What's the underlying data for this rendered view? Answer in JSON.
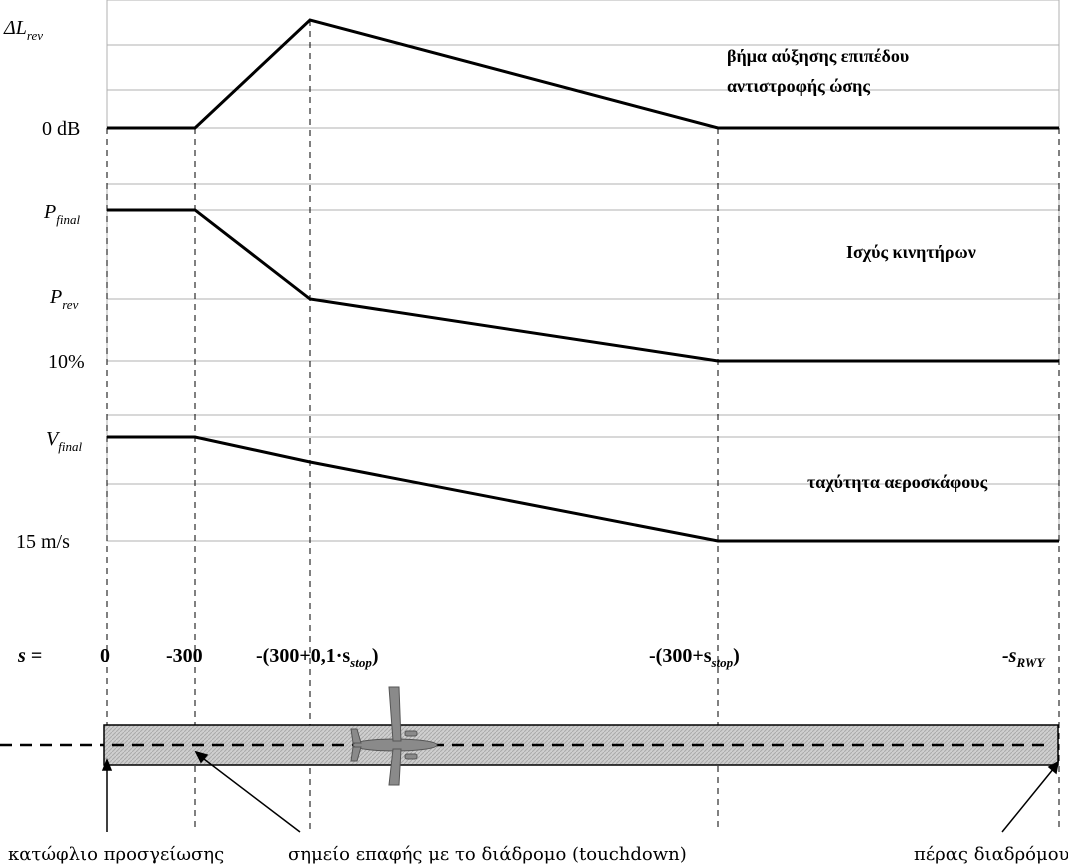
{
  "panels": {
    "reverse_step": {
      "title_line1": "βήμα αύξησης επιπέδου",
      "title_line2": "αντιστροφής ώσης",
      "y_top_main": "ΔL",
      "y_top_sub": "rev",
      "y_bottom": "0 dB"
    },
    "engine_power": {
      "title": "Ισχύς κινητήρων",
      "y_top_main": "P",
      "y_top_sub": "final",
      "y_mid_main": "P",
      "y_mid_sub": "rev",
      "y_bottom": "10%"
    },
    "aircraft_speed": {
      "title": "ταχύτητα αεροσκάφους",
      "y_top_main": "V",
      "y_top_sub": "final",
      "y_bottom": "15 m/s"
    }
  },
  "s_axis": {
    "label": "s =",
    "ticks": [
      {
        "main": "0",
        "sub": "",
        "tail": ""
      },
      {
        "main": "-300",
        "sub": "",
        "tail": ""
      },
      {
        "main": "-(300+0,1·s",
        "sub": "stop",
        "tail": ")"
      },
      {
        "main": "-(300+s",
        "sub": "stop",
        "tail": ")"
      },
      {
        "main": "-s",
        "sub": "RWY",
        "tail": ""
      }
    ]
  },
  "callouts": {
    "threshold": "κατώφλιο προσγείωσης",
    "touchdown": "σημείο επαφής με το διάδρομο (touchdown)",
    "runway_end": "πέρας διαδρόμου"
  },
  "colors": {
    "line": "#000000",
    "grid": "#b0b0b0",
    "runway_fill": "#c8c8c8",
    "aircraft": "#8a8a8a"
  },
  "icons": {
    "aircraft": "airplane-icon"
  }
}
